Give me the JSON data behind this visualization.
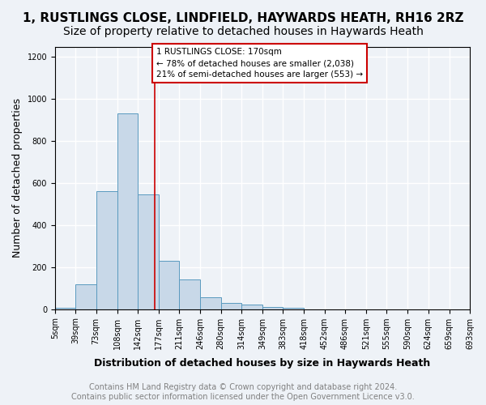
{
  "title_line1": "1, RUSTLINGS CLOSE, LINDFIELD, HAYWARDS HEATH, RH16 2RZ",
  "title_line2": "Size of property relative to detached houses in Haywards Heath",
  "xlabel": "Distribution of detached houses by size in Haywards Heath",
  "ylabel": "Number of detached properties",
  "bin_edges": [
    5,
    39,
    73,
    108,
    142,
    177,
    211,
    246,
    280,
    314,
    349,
    383,
    418,
    452,
    486,
    521,
    555,
    590,
    624,
    659,
    693
  ],
  "bar_heights": [
    5,
    120,
    560,
    930,
    545,
    230,
    140,
    58,
    30,
    20,
    10,
    5,
    0,
    0,
    0,
    0,
    0,
    0,
    0,
    0
  ],
  "bar_color": "#c8d8e8",
  "bar_edge_color": "#5a9abf",
  "property_size": 170,
  "vline_color": "#cc0000",
  "annotation_text": "1 RUSTLINGS CLOSE: 170sqm\n← 78% of detached houses are smaller (2,038)\n21% of semi-detached houses are larger (553) →",
  "annotation_box_color": "#ffffff",
  "annotation_border_color": "#cc0000",
  "ylim": [
    0,
    1250
  ],
  "yticks": [
    0,
    200,
    400,
    600,
    800,
    1000,
    1200
  ],
  "footer_text": "Contains HM Land Registry data © Crown copyright and database right 2024.\nContains public sector information licensed under the Open Government Licence v3.0.",
  "background_color": "#eef2f7",
  "plot_bg_color": "#eef2f7",
  "grid_color": "#ffffff",
  "title_fontsize": 11,
  "subtitle_fontsize": 10,
  "axis_label_fontsize": 9,
  "tick_fontsize": 7,
  "footer_fontsize": 7
}
